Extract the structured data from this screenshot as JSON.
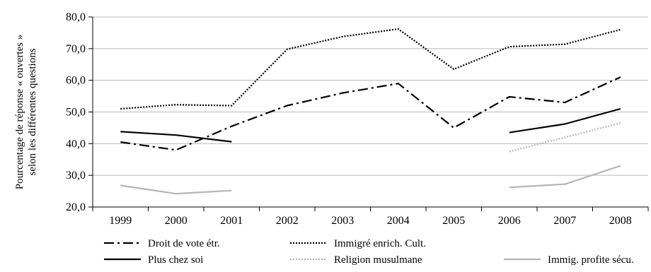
{
  "chart_data": {
    "type": "line",
    "title": "",
    "xlabel": "",
    "ylabel_lines": [
      "Pourcentage de réponse « ouvertes »",
      "selon les différentes questions"
    ],
    "categories": [
      "1999",
      "2000",
      "2001",
      "2002",
      "2003",
      "2004",
      "2005",
      "2006",
      "2007",
      "2008"
    ],
    "ylim": [
      20,
      80
    ],
    "yticks": [
      20,
      30,
      40,
      50,
      60,
      70,
      80
    ],
    "ytick_labels": [
      "20,0",
      "30,0",
      "40,0",
      "50,0",
      "60,0",
      "70,0",
      "80,0"
    ],
    "grid": "horizontal",
    "legend_position": "bottom",
    "series": [
      {
        "name": "Droit de vote étr.",
        "values": [
          40.5,
          38.0,
          45.5,
          52.0,
          56.0,
          59.0,
          45.0,
          54.8,
          53.0,
          61.0
        ],
        "color": "#000000",
        "dash": "dashdot"
      },
      {
        "name": "Immigré enrich. Cult.",
        "values": [
          51.0,
          52.3,
          52.0,
          69.8,
          73.8,
          76.2,
          63.5,
          70.6,
          71.4,
          76.0
        ],
        "color": "#000000",
        "dash": "dotted"
      },
      {
        "name": "Plus chez soi",
        "values": [
          43.8,
          42.7,
          40.6,
          null,
          null,
          null,
          null,
          43.5,
          46.2,
          51.0
        ],
        "color": "#000000",
        "dash": "solid"
      },
      {
        "name": "Religion musulmane",
        "values": [
          null,
          null,
          null,
          null,
          null,
          null,
          null,
          37.5,
          42.0,
          46.5
        ],
        "color": "#b5b5b5",
        "dash": "dotted"
      },
      {
        "name": "Immig. profite sécu.",
        "values": [
          26.8,
          24.2,
          25.2,
          null,
          null,
          null,
          null,
          26.2,
          27.2,
          33.0
        ],
        "color": "#b5b5b5",
        "dash": "solid"
      }
    ]
  }
}
